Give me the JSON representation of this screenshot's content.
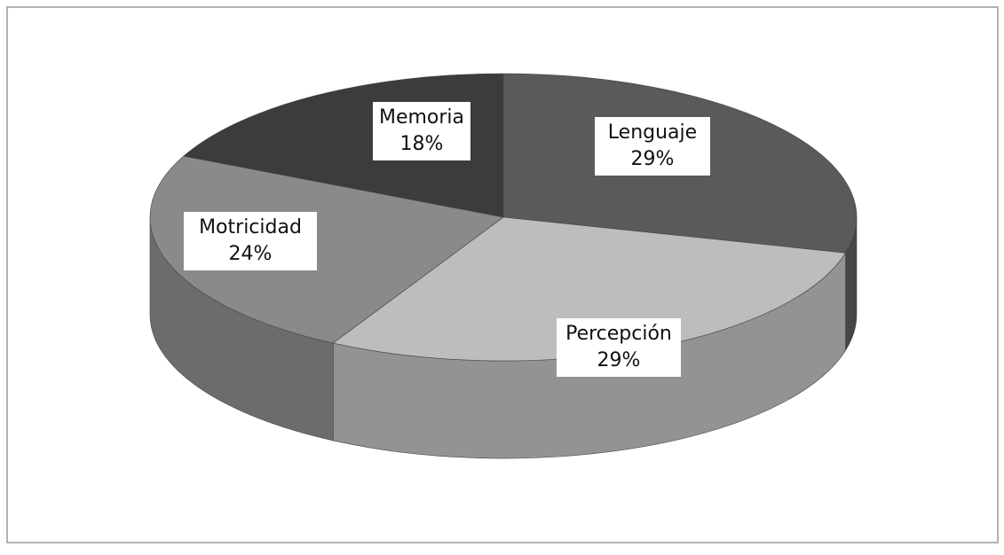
{
  "chart_data": {
    "type": "pie3d",
    "categories": [
      "Lenguaje",
      "Percepción",
      "Motricidad",
      "Memoria"
    ],
    "values": [
      29,
      29,
      24,
      18
    ],
    "value_labels": [
      "29%",
      "29%",
      "24%",
      "18%"
    ],
    "colors": [
      "#5a5a5a",
      "#bdbdbd",
      "#8a8a8a",
      "#3c3c3c"
    ]
  }
}
